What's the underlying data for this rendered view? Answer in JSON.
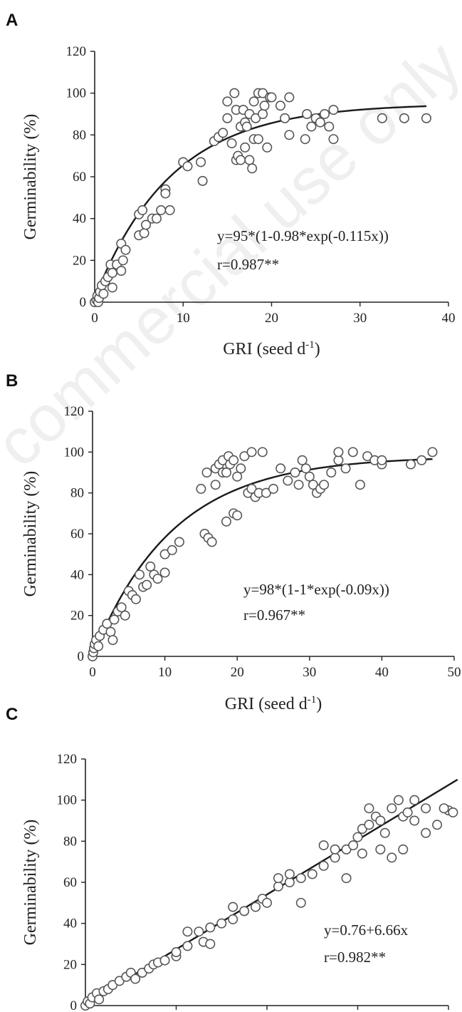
{
  "chart_data": [
    {
      "panel": "A",
      "type": "scatter",
      "title": "",
      "xlabel": "GRI (seed d-1)",
      "ylabel": "Germinability (%)",
      "xlim": [
        0,
        40
      ],
      "ylim": [
        0,
        120
      ],
      "xticks": [
        0,
        10,
        20,
        30,
        40
      ],
      "yticks": [
        0,
        20,
        40,
        60,
        80,
        100,
        120
      ],
      "annotations": [
        "y=95*(1-0.98*exp(-0.115x))",
        "r=0.987**"
      ],
      "fit": {
        "type": "exponential-rise",
        "a": 95,
        "b": 0.98,
        "k": 0.115,
        "x_range": [
          0,
          37.5
        ]
      },
      "points": [
        [
          0,
          0
        ],
        [
          0.2,
          1
        ],
        [
          0.3,
          3
        ],
        [
          0.4,
          0
        ],
        [
          0.5,
          2
        ],
        [
          0.6,
          5
        ],
        [
          0.8,
          8
        ],
        [
          1,
          4
        ],
        [
          1.2,
          10
        ],
        [
          1.5,
          12
        ],
        [
          1.8,
          18
        ],
        [
          2,
          14
        ],
        [
          2,
          7
        ],
        [
          2.5,
          18
        ],
        [
          3,
          15
        ],
        [
          3,
          28
        ],
        [
          3.2,
          20
        ],
        [
          3.5,
          25
        ],
        [
          5,
          32
        ],
        [
          5,
          42
        ],
        [
          5.4,
          44
        ],
        [
          5.6,
          33
        ],
        [
          5.8,
          37
        ],
        [
          6.5,
          40
        ],
        [
          7,
          40
        ],
        [
          7.5,
          44
        ],
        [
          8,
          54
        ],
        [
          8,
          52
        ],
        [
          8.5,
          44
        ],
        [
          10,
          67
        ],
        [
          10.5,
          65
        ],
        [
          12,
          67
        ],
        [
          12.2,
          58
        ],
        [
          13.5,
          77
        ],
        [
          14,
          79
        ],
        [
          14.5,
          81
        ],
        [
          15,
          88
        ],
        [
          15,
          96
        ],
        [
          15.5,
          76
        ],
        [
          15.8,
          100
        ],
        [
          16,
          68
        ],
        [
          16,
          92
        ],
        [
          16.2,
          70
        ],
        [
          16.5,
          84
        ],
        [
          16.5,
          68
        ],
        [
          16.8,
          92
        ],
        [
          17,
          74
        ],
        [
          17,
          86
        ],
        [
          17.2,
          84
        ],
        [
          17.5,
          68
        ],
        [
          17.5,
          90
        ],
        [
          17.8,
          64
        ],
        [
          18,
          78
        ],
        [
          18,
          96
        ],
        [
          18.2,
          88
        ],
        [
          18.5,
          100
        ],
        [
          18.5,
          78
        ],
        [
          19,
          100
        ],
        [
          19,
          90
        ],
        [
          19.2,
          94
        ],
        [
          19.5,
          74
        ],
        [
          19.8,
          98
        ],
        [
          20,
          98
        ],
        [
          21,
          94
        ],
        [
          21.5,
          88
        ],
        [
          22,
          80
        ],
        [
          22,
          98
        ],
        [
          23.8,
          78
        ],
        [
          24,
          90
        ],
        [
          24.5,
          84
        ],
        [
          25,
          88
        ],
        [
          25.5,
          86
        ],
        [
          26,
          90
        ],
        [
          26.5,
          84
        ],
        [
          27,
          78
        ],
        [
          27,
          92
        ],
        [
          32.5,
          88
        ],
        [
          35,
          88
        ],
        [
          37.5,
          88
        ]
      ]
    },
    {
      "panel": "B",
      "type": "scatter",
      "title": "",
      "xlabel": "GRI (seed d-1)",
      "ylabel": "Germinability (%)",
      "xlim": [
        0,
        50
      ],
      "ylim": [
        0,
        120
      ],
      "xticks": [
        0,
        10,
        20,
        30,
        40,
        50
      ],
      "yticks": [
        0,
        20,
        40,
        60,
        80,
        100,
        120
      ],
      "annotations": [
        "y=98*(1-1*exp(-0.09x))",
        "r=0.967**"
      ],
      "fit": {
        "type": "exponential-rise",
        "a": 98,
        "b": 1,
        "k": 0.09,
        "x_range": [
          0,
          47
        ]
      },
      "points": [
        [
          0,
          0
        ],
        [
          0.1,
          2
        ],
        [
          0.2,
          4
        ],
        [
          0.3,
          6
        ],
        [
          0.5,
          8
        ],
        [
          0.8,
          5
        ],
        [
          1,
          10
        ],
        [
          1.5,
          13
        ],
        [
          2,
          16
        ],
        [
          2.5,
          12
        ],
        [
          2.8,
          8
        ],
        [
          3,
          18
        ],
        [
          3.5,
          22
        ],
        [
          4,
          24
        ],
        [
          4.5,
          20
        ],
        [
          5,
          32
        ],
        [
          5.5,
          30
        ],
        [
          6,
          28
        ],
        [
          6.5,
          40
        ],
        [
          7,
          34
        ],
        [
          7.5,
          35
        ],
        [
          8,
          44
        ],
        [
          8.5,
          40
        ],
        [
          9,
          38
        ],
        [
          10,
          41
        ],
        [
          10,
          50
        ],
        [
          11,
          52
        ],
        [
          12,
          56
        ],
        [
          15,
          82
        ],
        [
          15.5,
          60
        ],
        [
          15.8,
          90
        ],
        [
          16,
          58
        ],
        [
          16.5,
          56
        ],
        [
          17,
          84
        ],
        [
          17,
          92
        ],
        [
          17.5,
          94
        ],
        [
          18,
          90
        ],
        [
          18,
          96
        ],
        [
          18.5,
          90
        ],
        [
          18.8,
          98
        ],
        [
          19,
          94
        ],
        [
          19.5,
          96
        ],
        [
          20,
          88
        ],
        [
          20.5,
          92
        ],
        [
          21,
          98
        ],
        [
          21.5,
          80
        ],
        [
          22,
          100
        ],
        [
          22,
          82
        ],
        [
          22.5,
          78
        ],
        [
          23,
          80
        ],
        [
          23.5,
          100
        ],
        [
          24,
          80
        ],
        [
          25,
          82
        ],
        [
          26,
          92
        ],
        [
          27,
          86
        ],
        [
          28,
          90
        ],
        [
          28.5,
          84
        ],
        [
          29,
          96
        ],
        [
          29.5,
          92
        ],
        [
          30,
          88
        ],
        [
          30.5,
          84
        ],
        [
          31,
          80
        ],
        [
          31.5,
          82
        ],
        [
          32,
          84
        ],
        [
          33,
          90
        ],
        [
          34,
          96
        ],
        [
          34,
          100
        ],
        [
          35,
          92
        ],
        [
          36,
          100
        ],
        [
          37,
          84
        ],
        [
          38,
          98
        ],
        [
          39,
          96
        ],
        [
          40,
          94
        ],
        [
          40,
          96
        ],
        [
          44,
          94
        ],
        [
          45.5,
          96
        ],
        [
          47,
          100
        ],
        [
          18.5,
          66
        ],
        [
          19.5,
          70
        ],
        [
          20,
          69
        ]
      ]
    },
    {
      "panel": "C",
      "type": "scatter",
      "title": "",
      "xlabel": "",
      "ylabel": "Germinability (%)",
      "xlim": [
        0,
        16
      ],
      "ylim": [
        0,
        120
      ],
      "yticks": [
        0,
        20,
        40,
        60,
        80,
        100,
        120
      ],
      "annotations": [
        "y=0.76+6.66x",
        "r=0.982**"
      ],
      "fit": {
        "type": "linear",
        "intercept": 0.76,
        "slope": 6.66,
        "x_range": [
          0,
          16.4
        ]
      },
      "points": [
        [
          0,
          0
        ],
        [
          0.1,
          2
        ],
        [
          0.2,
          1
        ],
        [
          0.3,
          4
        ],
        [
          0.5,
          6
        ],
        [
          0.6,
          3
        ],
        [
          0.8,
          7
        ],
        [
          1,
          8
        ],
        [
          1.2,
          10
        ],
        [
          1.5,
          12
        ],
        [
          1.8,
          14
        ],
        [
          2,
          16
        ],
        [
          2.2,
          13
        ],
        [
          2.5,
          16
        ],
        [
          2.8,
          18
        ],
        [
          3,
          20
        ],
        [
          3.2,
          21
        ],
        [
          3.5,
          22
        ],
        [
          4,
          24
        ],
        [
          4,
          26
        ],
        [
          4.5,
          29
        ],
        [
          5,
          36
        ],
        [
          5.2,
          31
        ],
        [
          5.5,
          38
        ],
        [
          6,
          40
        ],
        [
          6.5,
          42
        ],
        [
          7,
          46
        ],
        [
          7.5,
          48
        ],
        [
          7.8,
          52
        ],
        [
          8,
          50
        ],
        [
          8.5,
          58
        ],
        [
          9,
          60
        ],
        [
          9.5,
          62
        ],
        [
          10,
          64
        ],
        [
          10.5,
          68
        ],
        [
          11,
          72
        ],
        [
          11.5,
          76
        ],
        [
          11.8,
          78
        ],
        [
          12,
          82
        ],
        [
          12.2,
          86
        ],
        [
          12.5,
          88
        ],
        [
          12.8,
          92
        ],
        [
          13,
          90
        ],
        [
          13.2,
          84
        ],
        [
          13.5,
          96
        ],
        [
          13.8,
          100
        ],
        [
          14,
          92
        ],
        [
          14.2,
          94
        ],
        [
          14.5,
          90
        ],
        [
          15,
          96
        ],
        [
          15.5,
          88
        ],
        [
          16,
          95
        ],
        [
          16.2,
          94
        ],
        [
          6.5,
          48
        ],
        [
          8.5,
          62
        ],
        [
          9.5,
          50
        ],
        [
          10.5,
          78
        ],
        [
          11.5,
          62
        ],
        [
          12.2,
          74
        ],
        [
          13,
          76
        ],
        [
          13.5,
          72
        ],
        [
          14,
          76
        ],
        [
          15,
          84
        ],
        [
          15.8,
          96
        ],
        [
          4.5,
          36
        ],
        [
          5.5,
          30
        ],
        [
          9,
          64
        ],
        [
          11,
          76
        ],
        [
          12.5,
          96
        ],
        [
          14.5,
          100
        ]
      ]
    }
  ],
  "watermark": "commercial use only"
}
